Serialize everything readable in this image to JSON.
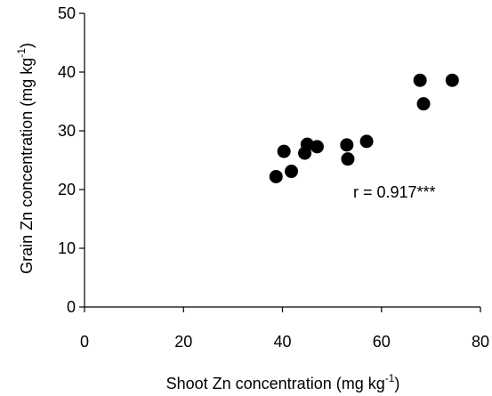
{
  "chart_data": {
    "type": "scatter",
    "xlabel": {
      "main": "Shoot Zn concentration (mg kg",
      "sup": "-1",
      "tail": ")"
    },
    "ylabel": {
      "main": "Grain Zn concentration (mg kg",
      "sup": "-1",
      "tail": ")"
    },
    "xlim": [
      0,
      80
    ],
    "ylim": [
      0,
      50
    ],
    "xticks": [
      0,
      20,
      40,
      60,
      80
    ],
    "yticks": [
      0,
      10,
      20,
      30,
      40,
      50
    ],
    "xtick_labels": [
      "0",
      "20",
      "40",
      "60",
      "80"
    ],
    "ytick_labels": [
      "0",
      "10",
      "20",
      "30",
      "40",
      "50"
    ],
    "grid": false,
    "annotation": "r = 0.917***",
    "marker_color": "#000000",
    "points": [
      {
        "x": 38.7,
        "y": 22.2
      },
      {
        "x": 40.3,
        "y": 26.5
      },
      {
        "x": 41.8,
        "y": 23.1
      },
      {
        "x": 44.5,
        "y": 26.2
      },
      {
        "x": 45.0,
        "y": 27.7
      },
      {
        "x": 47.0,
        "y": 27.3
      },
      {
        "x": 53.0,
        "y": 27.6
      },
      {
        "x": 53.2,
        "y": 25.2
      },
      {
        "x": 57.0,
        "y": 28.2
      },
      {
        "x": 67.8,
        "y": 38.6
      },
      {
        "x": 68.5,
        "y": 34.6
      },
      {
        "x": 74.3,
        "y": 38.6
      }
    ]
  }
}
